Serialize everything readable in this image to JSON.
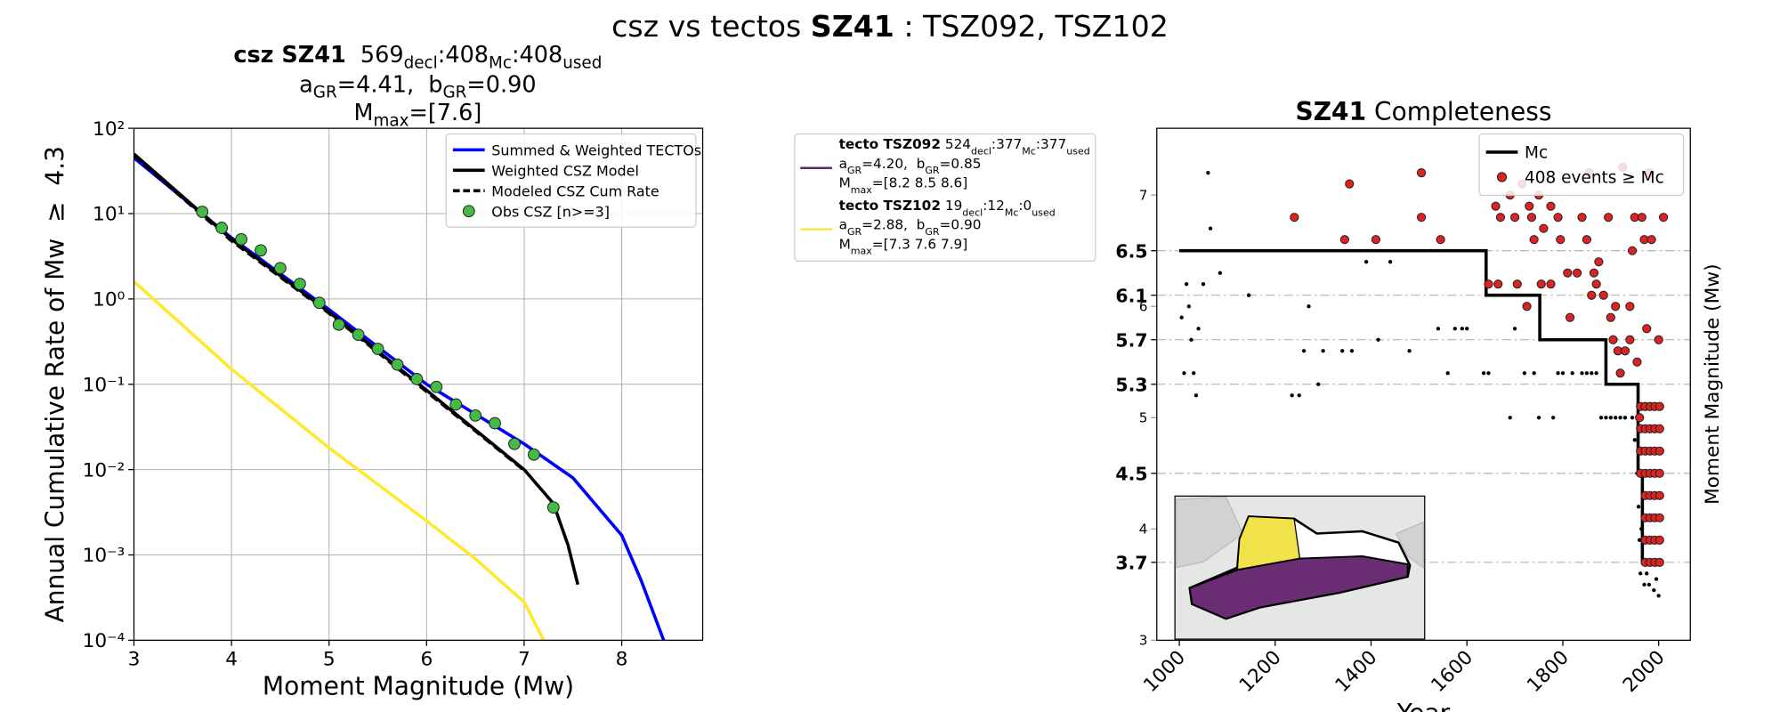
{
  "suptitle": [
    {
      "t": "csz vs tectos "
    },
    {
      "t": "SZ41",
      "s": "b"
    },
    {
      "t": " : TSZ092, TSZ102"
    }
  ],
  "tecto_legend": {
    "entries": [
      {
        "color": "#5b2a6e",
        "lines": [
          [
            {
              "t": "tecto TSZ092",
              "s": "b"
            },
            {
              "t": " 524"
            },
            {
              "t": "decl",
              "s": "sub"
            },
            {
              "t": ":377"
            },
            {
              "t": "Mc",
              "s": "sub"
            },
            {
              "t": ":377"
            },
            {
              "t": "used",
              "s": "sub"
            }
          ],
          [
            {
              "t": "a"
            },
            {
              "t": "GR",
              "s": "sub"
            },
            {
              "t": "=4.20,  b"
            },
            {
              "t": "GR",
              "s": "sub"
            },
            {
              "t": "=0.85"
            }
          ],
          [
            {
              "t": "M"
            },
            {
              "t": "max",
              "s": "sub"
            },
            {
              "t": "=[8.2 8.5 8.6]"
            }
          ]
        ]
      },
      {
        "color": "#f5e94a",
        "lines": [
          [
            {
              "t": "tecto TSZ102",
              "s": "b"
            },
            {
              "t": " 19"
            },
            {
              "t": "decl",
              "s": "sub"
            },
            {
              "t": ":12"
            },
            {
              "t": "Mc",
              "s": "sub"
            },
            {
              "t": ":0"
            },
            {
              "t": "used",
              "s": "sub"
            }
          ],
          [
            {
              "t": "a"
            },
            {
              "t": "GR",
              "s": "sub"
            },
            {
              "t": "=2.88,  b"
            },
            {
              "t": "GR",
              "s": "sub"
            },
            {
              "t": "=0.90"
            }
          ],
          [
            {
              "t": "M"
            },
            {
              "t": "max",
              "s": "sub"
            },
            {
              "t": "=[7.3 7.6 7.9]"
            }
          ]
        ]
      }
    ]
  },
  "chart_data": [
    {
      "type": "line",
      "title_lines": [
        [
          {
            "t": "csz SZ41",
            "s": "b"
          },
          {
            "t": "  569"
          },
          {
            "t": "decl",
            "s": "sub"
          },
          {
            "t": ":408"
          },
          {
            "t": "Mc",
            "s": "sub"
          },
          {
            "t": ":408"
          },
          {
            "t": "used",
            "s": "sub"
          }
        ],
        [
          {
            "t": "a"
          },
          {
            "t": "GR",
            "s": "sub"
          },
          {
            "t": "=4.41,  b"
          },
          {
            "t": "GR",
            "s": "sub"
          },
          {
            "t": "=0.90"
          }
        ],
        [
          {
            "t": "M"
          },
          {
            "t": "max",
            "s": "sub"
          },
          {
            "t": "=[7.6]"
          }
        ]
      ],
      "x_label": "Moment Magnitude (Mw)",
      "y_label": "Annual Cumulative Rate of Mw  ≥  4.3",
      "yscale": "log",
      "grid": true,
      "legend": "upper right",
      "xlim": [
        3,
        8.83
      ],
      "ylim": [
        0.0001,
        100
      ],
      "xticks": [
        3,
        4,
        5,
        6,
        7,
        8
      ],
      "yticks": [
        {
          "value": 0.0001,
          "label": "10⁻⁴"
        },
        {
          "value": 0.001,
          "label": "10⁻³"
        },
        {
          "value": 0.01,
          "label": "10⁻²"
        },
        {
          "value": 0.1,
          "label": "10⁻¹"
        },
        {
          "value": 1,
          "label": "10⁰"
        },
        {
          "value": 10,
          "label": "10¹"
        },
        {
          "value": 100,
          "label": "10²"
        }
      ],
      "series": [
        {
          "kind": "line",
          "color": "#ffe92e",
          "x": [
            3,
            4,
            5,
            6,
            6.5,
            7,
            7.2
          ],
          "values": [
            1.6,
            0.15,
            0.018,
            0.0025,
            0.0009,
            0.00028,
            0.0001
          ]
        },
        {
          "name": "Summed & Weighted TECTOs",
          "kind": "line",
          "color": "#0000ff",
          "x": [
            3,
            4,
            5,
            6,
            7,
            7.5,
            8,
            8.2,
            8.43
          ],
          "values": [
            45,
            5.2,
            0.75,
            0.1,
            0.02,
            0.008,
            0.0017,
            0.0005,
            0.0001
          ]
        },
        {
          "name": "Weighted CSZ Model",
          "kind": "line",
          "color": "#000000",
          "x": [
            3,
            4,
            5,
            6,
            7,
            7.3,
            7.45,
            7.55
          ],
          "values": [
            50,
            5,
            0.7,
            0.085,
            0.01,
            0.004,
            0.0013,
            0.00045
          ]
        },
        {
          "name": "Modeled CSZ Cum Rate",
          "kind": "line",
          "dash": true,
          "color": "#000000",
          "x": [
            3,
            4,
            5,
            6,
            7
          ],
          "values": [
            48,
            4.8,
            0.68,
            0.082,
            0.0098
          ]
        },
        {
          "name": "Obs CSZ [n>=3]",
          "kind": "scatter",
          "marker": "circle",
          "color": "#44bb44",
          "x": [
            3.7,
            3.9,
            4.1,
            4.3,
            4.5,
            4.7,
            4.9,
            5.1,
            5.3,
            5.5,
            5.7,
            5.9,
            6.1,
            6.3,
            6.5,
            6.7,
            6.9,
            7.1,
            7.3
          ],
          "values": [
            10.5,
            6.8,
            5.0,
            3.7,
            2.3,
            1.5,
            0.9,
            0.5,
            0.38,
            0.26,
            0.17,
            0.115,
            0.093,
            0.058,
            0.043,
            0.035,
            0.02,
            0.015,
            0.0036
          ]
        }
      ]
    },
    {
      "type": "scatter",
      "title": [
        {
          "t": "SZ41",
          "s": "b"
        },
        {
          "t": " Completeness"
        }
      ],
      "x_label": "Year",
      "y_label": "Moment Magnitude (Mw)",
      "ylabel_side": "right",
      "legend": "upper right",
      "xlim": [
        953,
        2066
      ],
      "ylim": [
        3,
        7.6
      ],
      "xticks": [
        1000,
        1200,
        1400,
        1600,
        1800,
        2000
      ],
      "yticks": [
        3,
        4,
        5,
        6,
        7
      ],
      "mc_levels": [
        3.7,
        4.5,
        5.3,
        5.7,
        6.1,
        6.5
      ],
      "series": [
        {
          "kind": "scatter",
          "marker": "dot",
          "color": "#000000",
          "x": [
            1005,
            1010,
            1015,
            1020,
            1025,
            1030,
            1035,
            1040,
            1050,
            1060,
            1065,
            1085,
            1145,
            1235,
            1250,
            1260,
            1270,
            1290,
            1300,
            1340,
            1360,
            1390,
            1415,
            1440,
            1480,
            1540,
            1560,
            1575,
            1590,
            1600,
            1635,
            1645,
            1690,
            1700,
            1720,
            1740,
            1750,
            1780,
            1790,
            1800,
            1820,
            1840,
            1850,
            1860,
            1870,
            1880,
            1890,
            1900,
            1910,
            1920,
            1930,
            1945,
            1950,
            1955,
            1958,
            1960,
            1962,
            1964,
            1970,
            1975,
            1980,
            1990,
            1995,
            2000
          ],
          "values": [
            5.9,
            5.4,
            6.2,
            6.0,
            5.7,
            5.4,
            5.2,
            5.8,
            6.2,
            7.2,
            6.7,
            6.3,
            6.1,
            5.2,
            5.2,
            5.6,
            6.0,
            5.3,
            5.6,
            5.6,
            5.6,
            6.4,
            5.7,
            6.4,
            5.6,
            5.8,
            5.4,
            5.8,
            5.8,
            5.8,
            5.4,
            5.4,
            5.0,
            5.8,
            5.4,
            5.4,
            5.0,
            5.0,
            5.4,
            5.4,
            5.4,
            5.4,
            5.4,
            5.4,
            5.4,
            5.0,
            5.0,
            5.0,
            5.0,
            5.0,
            5.0,
            5.0,
            4.8,
            4.5,
            4.2,
            3.9,
            3.6,
            4.0,
            3.5,
            3.6,
            3.5,
            3.45,
            3.55,
            3.4
          ]
        },
        {
          "name": "Mc",
          "kind": "step",
          "color": "#000000",
          "x": [
            1000,
            1640,
            1752,
            1890,
            1957,
            1966,
            2005
          ],
          "values": [
            6.5,
            6.1,
            5.7,
            5.3,
            4.5,
            3.7,
            3.7
          ]
        },
        {
          "name": "408 events ≥ Mc",
          "kind": "scatter",
          "marker": "circle",
          "color": "#dd2222",
          "x": [
            1240,
            1345,
            1355,
            1410,
            1505,
            1505,
            1545,
            1645,
            1660,
            1665,
            1670,
            1690,
            1700,
            1705,
            1715,
            1725,
            1730,
            1735,
            1740,
            1750,
            1755,
            1760,
            1775,
            1775,
            1790,
            1795,
            1810,
            1815,
            1830,
            1840,
            1850,
            1855,
            1860,
            1865,
            1870,
            1875,
            1885,
            1895,
            1900,
            1905,
            1910,
            1915,
            1920,
            1925,
            1930,
            1940,
            1940,
            1945,
            1950,
            1955,
            1960,
            1965,
            1970,
            1975,
            1980,
            1985,
            2000,
            2010,
            1962,
            1962,
            1962,
            1962,
            1972,
            1972,
            1972,
            1972,
            1972,
            1972,
            1972,
            1972,
            1982,
            1982,
            1982,
            1982,
            1982,
            1982,
            1982,
            1982,
            1992,
            1992,
            1992,
            1992,
            1992,
            1992,
            1992,
            1992,
            2002,
            2002,
            2002,
            2002,
            2002,
            2002,
            2002,
            2002
          ],
          "values": [
            6.8,
            6.6,
            7.1,
            6.6,
            6.8,
            7.2,
            6.6,
            6.2,
            6.9,
            6.2,
            6.8,
            7.0,
            6.8,
            6.2,
            7.1,
            6.0,
            6.9,
            6.8,
            6.6,
            7.0,
            6.2,
            6.7,
            6.9,
            6.2,
            6.8,
            6.6,
            6.3,
            5.9,
            6.3,
            6.8,
            6.6,
            7.2,
            6.1,
            6.3,
            6.2,
            6.4,
            6.1,
            6.8,
            5.9,
            5.7,
            6.0,
            5.6,
            5.4,
            7.25,
            5.6,
            5.7,
            6.0,
            6.5,
            6.8,
            5.5,
            5.0,
            6.8,
            6.6,
            5.8,
            7.2,
            6.6,
            5.7,
            6.8,
            4.5,
            4.7,
            4.9,
            5.1,
            3.7,
            3.9,
            4.1,
            4.3,
            4.5,
            4.7,
            4.9,
            5.1,
            3.7,
            3.9,
            4.1,
            4.3,
            4.5,
            4.7,
            4.9,
            5.1,
            3.7,
            3.9,
            4.1,
            4.3,
            4.5,
            4.7,
            4.9,
            5.1,
            3.7,
            3.9,
            4.1,
            4.3,
            4.5,
            4.7,
            4.9,
            5.1
          ]
        }
      ]
    }
  ]
}
